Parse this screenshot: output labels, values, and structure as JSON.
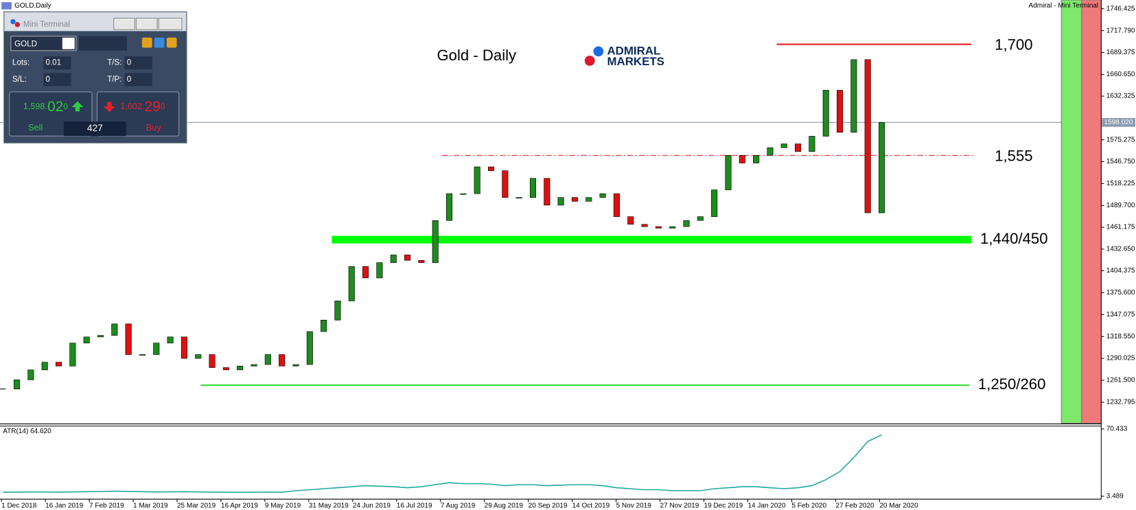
{
  "window": {
    "caption": "GOLD,Daily",
    "corner_label": "Admiral - Mini Terminal"
  },
  "mini_terminal": {
    "title": "Mini Terminal",
    "symbol": "GOLD",
    "fields": [
      {
        "label": "Lots:",
        "value": "0.01"
      },
      {
        "label": "T/S:",
        "value": "0"
      },
      {
        "label": "S/L:",
        "value": "0"
      },
      {
        "label": "T/P:",
        "value": "0"
      }
    ],
    "sell": {
      "price_main": "1,598.",
      "price_big": "02",
      "price_sup": "0",
      "label": "Sell"
    },
    "buy": {
      "price_main": "1,602.",
      "price_big": "29",
      "price_sup": "0",
      "label": "Buy"
    },
    "volume": "427"
  },
  "chart_data": {
    "type": "candlestick",
    "title": "Gold - Daily",
    "brand": [
      "ADMIRAL",
      "MARKETS"
    ],
    "bull_color": "#1e8c1e",
    "bear_color": "#e01010",
    "closes": [
      1250,
      1262,
      1275,
      1285,
      1280,
      1310,
      1318,
      1320,
      1335,
      1295,
      1295,
      1310,
      1318,
      1290,
      1295,
      1278,
      1275,
      1280,
      1282,
      1295,
      1280,
      1282,
      1325,
      1340,
      1365,
      1410,
      1395,
      1415,
      1425,
      1418,
      1415,
      1470,
      1505,
      1505,
      1540,
      1535,
      1500,
      1500,
      1525,
      1490,
      1500,
      1495,
      1500,
      1505,
      1475,
      1465,
      1462,
      1460,
      1462,
      1470,
      1475,
      1510,
      1555,
      1545,
      1555,
      1565,
      1570,
      1560,
      1580,
      1640,
      1585,
      1680,
      1480,
      1598
    ],
    "ylim": [
      1205.4,
      1757.8
    ],
    "yticks": [
      {
        "value": 1746.425,
        "label": "1746.425"
      },
      {
        "value": 1717.79,
        "label": "1717.790"
      },
      {
        "value": 1689.375,
        "label": "1689.375"
      },
      {
        "value": 1660.65,
        "label": "1660.650"
      },
      {
        "value": 1632.325,
        "label": "1632.325"
      },
      {
        "value": 1575.275,
        "label": "1575.275"
      },
      {
        "value": 1546.75,
        "label": "1546.750"
      },
      {
        "value": 1518.225,
        "label": "1518.225"
      },
      {
        "value": 1489.7,
        "label": "1489.700"
      },
      {
        "value": 1461.175,
        "label": "1461.175"
      },
      {
        "value": 1432.65,
        "label": "1432.650"
      },
      {
        "value": 1404.375,
        "label": "1404.375"
      },
      {
        "value": 1375.6,
        "label": "1375.600"
      },
      {
        "value": 1347.075,
        "label": "1347.075"
      },
      {
        "value": 1318.55,
        "label": "1318.550"
      },
      {
        "value": 1290.025,
        "label": "1290.025"
      },
      {
        "value": 1261.5,
        "label": "1261.500"
      },
      {
        "value": 1232.795,
        "label": "1232.795"
      }
    ],
    "current_price": {
      "value": 1598.02,
      "label": "1598.020"
    },
    "levels": [
      {
        "label": "1,700",
        "value": 1700,
        "color": "#e81c1c",
        "style": "solid"
      },
      {
        "label": "1,555",
        "value": 1555,
        "color": "#e81c1c",
        "style": "dashdot"
      }
    ],
    "zones": [
      {
        "label": "1,440/450",
        "low": 1440,
        "high": 1450,
        "color": "#00ff00"
      },
      {
        "label": "1,250/260",
        "low": 1250,
        "high": 1260,
        "color": "#33dd33"
      }
    ],
    "date_labels": [
      "1 Dec 2018",
      "16 Jan 2019",
      "7 Feb 2019",
      "1 Mar 2019",
      "25 Mar 2019",
      "16 Apr 2019",
      "9 May 2019",
      "31 May 2019",
      "24 Jun 2019",
      "16 Jul 2019",
      "7 Aug 2019",
      "29 Aug 2019",
      "20 Sep 2019",
      "14 Oct 2019",
      "5 Nov 2019",
      "27 Nov 2019",
      "19 Dec 2019",
      "14 Jan 2020",
      "5 Feb 2020",
      "27 Feb 2020",
      "20 Mar 2020"
    ],
    "atr": {
      "label": "ATR(14) 64.620",
      "color": "#20a8a0",
      "values": [
        7.5,
        7.6,
        7.8,
        7.7,
        7.6,
        7.8,
        8,
        8.2,
        8.5,
        8.3,
        8,
        7.8,
        7.9,
        8,
        7.8,
        7.6,
        7.5,
        7.4,
        7.5,
        7.6,
        7.5,
        9,
        10,
        11,
        12,
        13,
        14,
        13.5,
        13,
        12,
        13,
        15,
        17,
        16,
        16,
        15.5,
        14,
        15,
        15,
        14,
        14.5,
        15,
        15,
        14,
        12,
        11,
        10,
        10,
        9,
        9,
        9,
        11,
        12,
        13,
        13,
        12,
        11,
        12,
        14,
        20,
        28,
        42,
        58,
        64.62
      ],
      "ylim": [
        3.489,
        70.433
      ],
      "yticks": [
        {
          "value": 70.433,
          "label": "70.433"
        },
        {
          "value": 3.489,
          "label": "3.489"
        }
      ]
    }
  }
}
